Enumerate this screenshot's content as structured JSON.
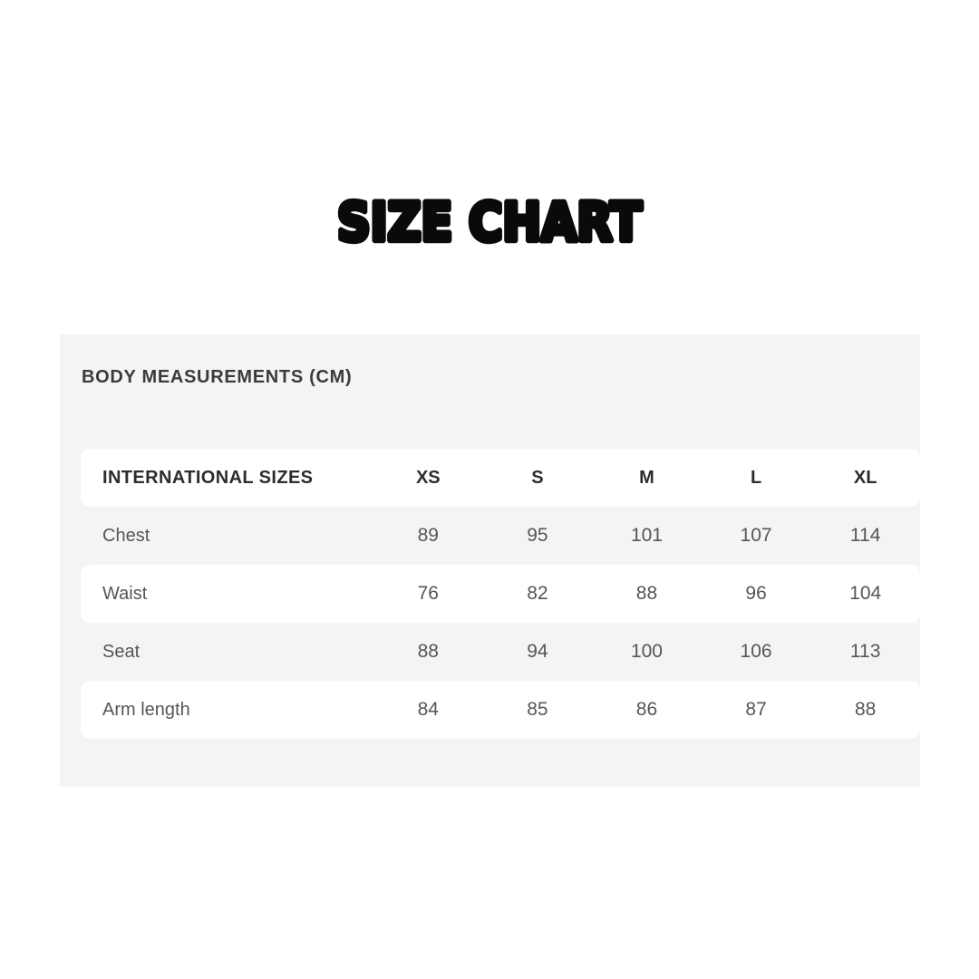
{
  "page": {
    "title": "SIZE CHART"
  },
  "panel": {
    "heading": "BODY MEASUREMENTS (CM)"
  },
  "chart_data": {
    "type": "table",
    "title": "SIZE CHART",
    "subtitle": "BODY MEASUREMENTS (CM)",
    "unit": "cm",
    "columns": [
      "INTERNATIONAL SIZES",
      "XS",
      "S",
      "M",
      "L",
      "XL"
    ],
    "rows": [
      [
        "Chest",
        89,
        95,
        101,
        107,
        114
      ],
      [
        "Waist",
        76,
        82,
        88,
        96,
        104
      ],
      [
        "Seat",
        88,
        94,
        100,
        106,
        113
      ],
      [
        "Arm length",
        84,
        85,
        86,
        87,
        88
      ]
    ]
  },
  "colors": {
    "page_bg": "#ffffff",
    "panel_bg": "#f4f4f4",
    "row_white": "#ffffff",
    "title_color": "#0a0a0a",
    "heading_color": "#3b3b3b",
    "header_color": "#2d2d30",
    "data_color": "#55565a"
  }
}
